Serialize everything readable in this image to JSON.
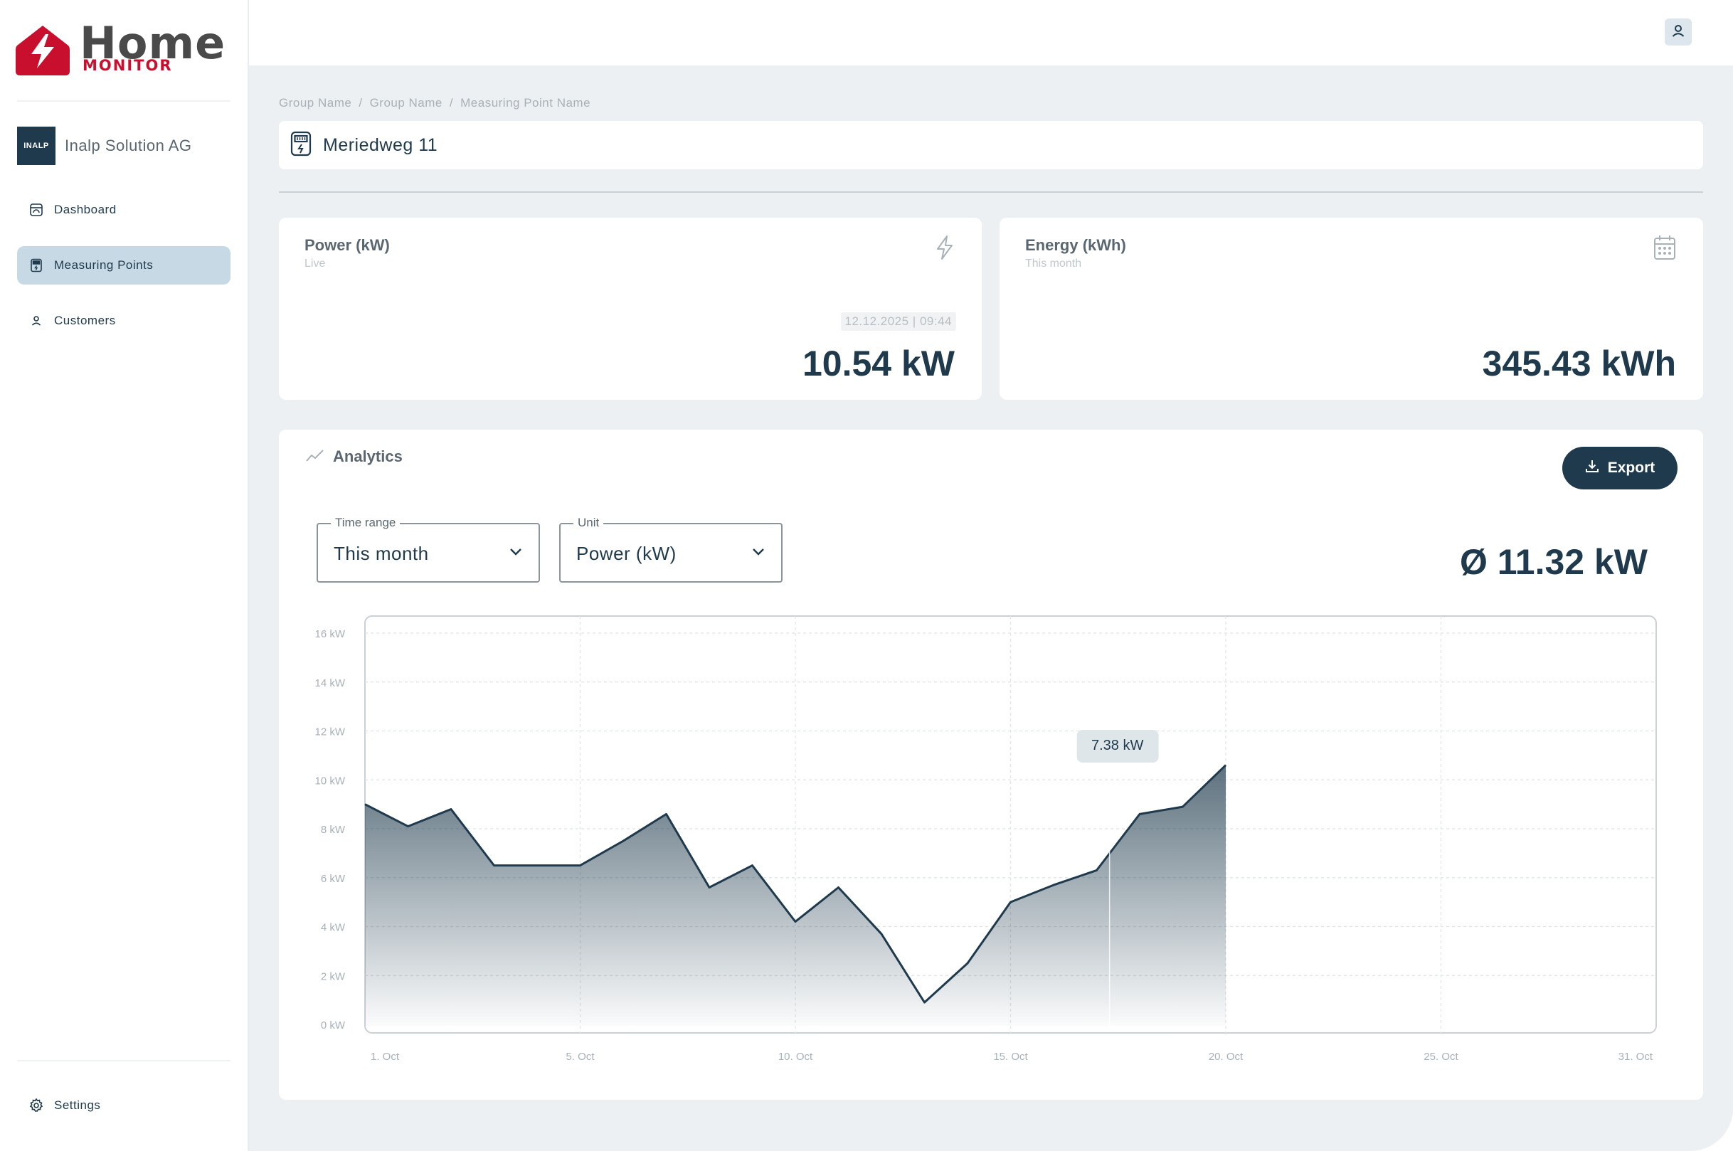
{
  "app": {
    "logo_word": "Home",
    "logo_sub": "MONITOR"
  },
  "sidebar": {
    "company": {
      "logo_text": "INALP",
      "name": "Inalp Solution AG"
    },
    "items": [
      {
        "label": "Dashboard",
        "icon": "dashboard-icon",
        "active": false
      },
      {
        "label": "Measuring Points",
        "icon": "meter-icon",
        "active": true
      },
      {
        "label": "Customers",
        "icon": "person-icon",
        "active": false
      }
    ],
    "settings_label": "Settings"
  },
  "breadcrumb": [
    "Group Name",
    "Group Name",
    "Measuring Point Name"
  ],
  "page": {
    "title": "Meriedweg 11"
  },
  "cards": {
    "power": {
      "title": "Power (kW)",
      "subtitle": "Live",
      "timestamp": "12.12.2025 | 09:44",
      "value": "10.54 kW",
      "icon": "lightning-icon"
    },
    "energy": {
      "title": "Energy (kWh)",
      "subtitle": "This month",
      "value": "345.43 kWh",
      "icon": "calendar-icon"
    }
  },
  "analytics": {
    "title": "Analytics",
    "export_label": "Export",
    "time_range": {
      "legend": "Time range",
      "value": "This month"
    },
    "unit": {
      "legend": "Unit",
      "value": "Power (kW)"
    },
    "average": "Ø 11.32 kW",
    "tooltip": "7.38 kW"
  },
  "colors": {
    "primary": "#1e3a4c",
    "active_nav": "#c7d9e4",
    "background": "#ecf0f2",
    "logo_red": "#c8102e"
  },
  "chart_data": {
    "type": "area",
    "x": [
      1,
      2,
      3,
      4,
      5,
      6,
      7,
      8,
      9,
      10,
      11,
      12,
      13,
      14,
      15,
      16,
      17,
      18,
      19,
      20,
      21
    ],
    "x_tick_labels": [
      "1. Oct",
      "5. Oct",
      "10. Oct",
      "15. Oct",
      "20. Oct",
      "25. Oct",
      "31. Oct"
    ],
    "x_ticks": [
      1,
      6,
      11,
      16,
      21,
      26,
      31
    ],
    "series": [
      {
        "values": [
          9.0,
          8.1,
          8.8,
          6.5,
          6.5,
          6.5,
          7.5,
          8.6,
          5.6,
          6.5,
          4.2,
          5.6,
          3.7,
          0.9,
          2.5,
          5.0,
          5.7,
          6.3,
          8.6,
          8.9,
          10.6
        ]
      }
    ],
    "xlim": [
      1,
      31
    ],
    "ylim": [
      0,
      16
    ],
    "y_ticks": [
      0,
      2,
      4,
      6,
      8,
      10,
      12,
      14,
      16
    ],
    "y_tick_labels": [
      "0 kW",
      "2 kW",
      "4 kW",
      "6 kW",
      "8 kW",
      "10 kW",
      "12 kW",
      "14 kW",
      "16 kW"
    ],
    "grid": true,
    "highlight": {
      "x": 18.3,
      "label": "7.38 kW"
    }
  }
}
